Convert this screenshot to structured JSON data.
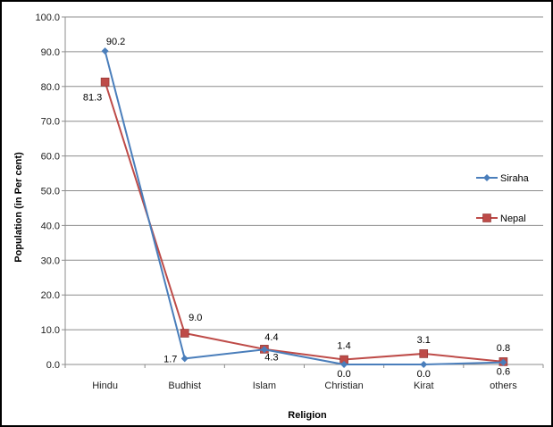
{
  "chart_data": {
    "type": "line",
    "xlabel": "Religion",
    "ylabel": "Population (in Per cent)",
    "categories": [
      "Hindu",
      "Budhist",
      "Islam",
      "Christian",
      "Kirat",
      "others"
    ],
    "ylim": [
      0,
      100
    ],
    "ytick_labels": [
      "0.0",
      "10.0",
      "20.0",
      "30.0",
      "40.0",
      "50.0",
      "60.0",
      "70.0",
      "80.0",
      "90.0",
      "100.0"
    ],
    "grid": true,
    "legend": "right",
    "series": [
      {
        "name": "Siraha",
        "color": "#4a7ebb",
        "marker": "diamond",
        "values": [
          90.2,
          1.7,
          4.3,
          0.0,
          0.0,
          0.6
        ],
        "labels": [
          "90.2",
          "1.7",
          "4.3",
          "0.0",
          "0.0",
          "0.6"
        ]
      },
      {
        "name": "Nepal",
        "color": "#be4b48",
        "marker": "square",
        "values": [
          81.3,
          9.0,
          4.4,
          1.4,
          3.1,
          0.8
        ],
        "labels": [
          "81.3",
          "9.0",
          "4.4",
          "1.4",
          "3.1",
          "0.8"
        ]
      }
    ]
  }
}
